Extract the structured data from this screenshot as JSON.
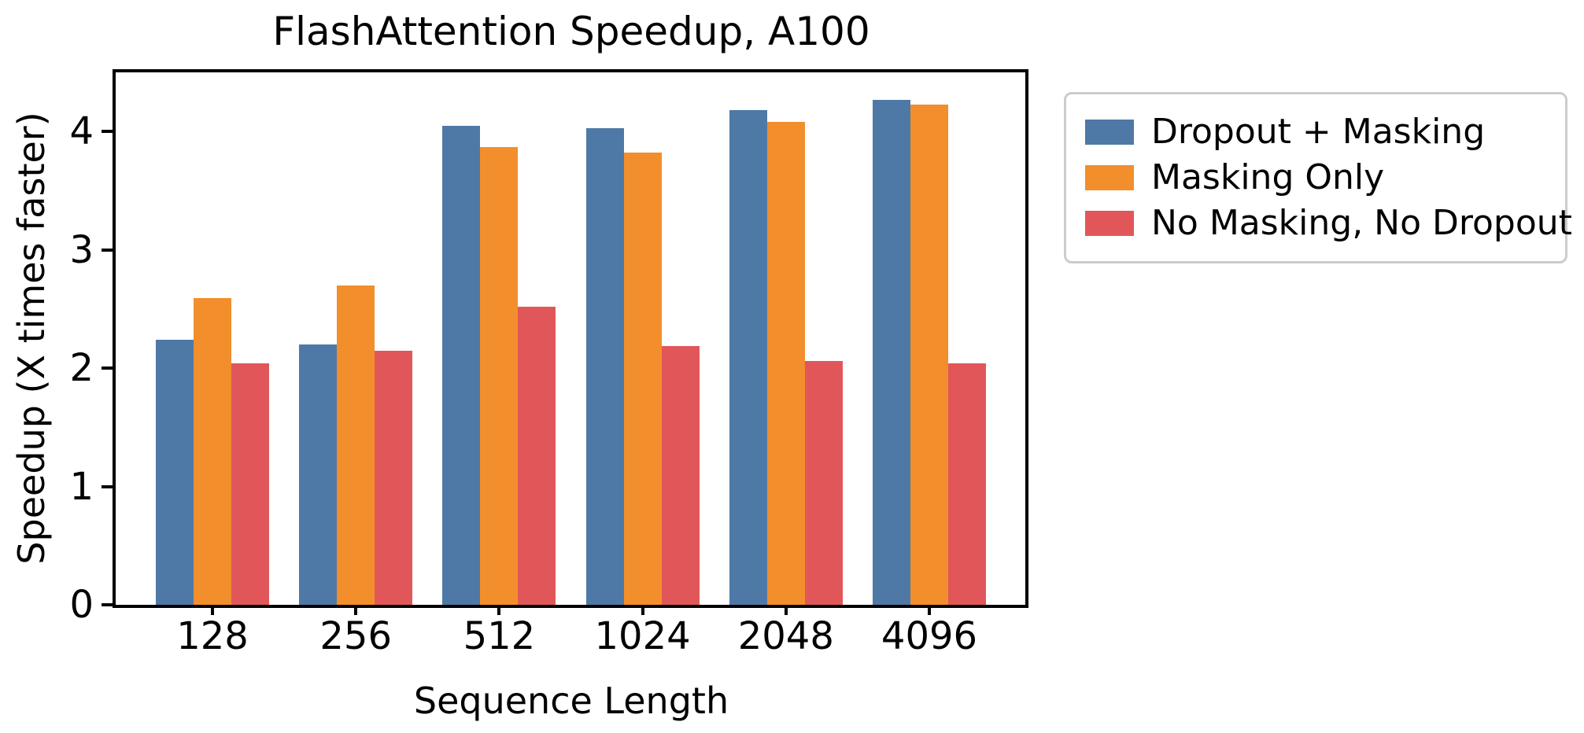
{
  "chart_data": {
    "type": "bar",
    "title": "FlashAttention Speedup, A100",
    "xlabel": "Sequence Length",
    "ylabel": "Speedup (X times faster)",
    "categories": [
      "128",
      "256",
      "512",
      "1024",
      "2048",
      "4096"
    ],
    "series": [
      {
        "name": "Dropout + Masking",
        "color": "#4E79A7",
        "values": [
          2.24,
          2.2,
          4.05,
          4.03,
          4.18,
          4.27
        ]
      },
      {
        "name": "Masking Only",
        "color": "#F28E2B",
        "values": [
          2.59,
          2.7,
          3.87,
          3.82,
          4.08,
          4.23
        ]
      },
      {
        "name": "No Masking, No Dropout",
        "color": "#E15759",
        "values": [
          2.04,
          2.15,
          2.52,
          2.19,
          2.06,
          2.04
        ]
      }
    ],
    "ylim": [
      0,
      4.5
    ],
    "yticks": [
      0,
      1,
      2,
      3,
      4
    ],
    "grid": false,
    "legend_position": "outside upper right",
    "axis_color": "#000000",
    "legend_border_color": "#cccccc",
    "background_color": "#ffffff"
  }
}
